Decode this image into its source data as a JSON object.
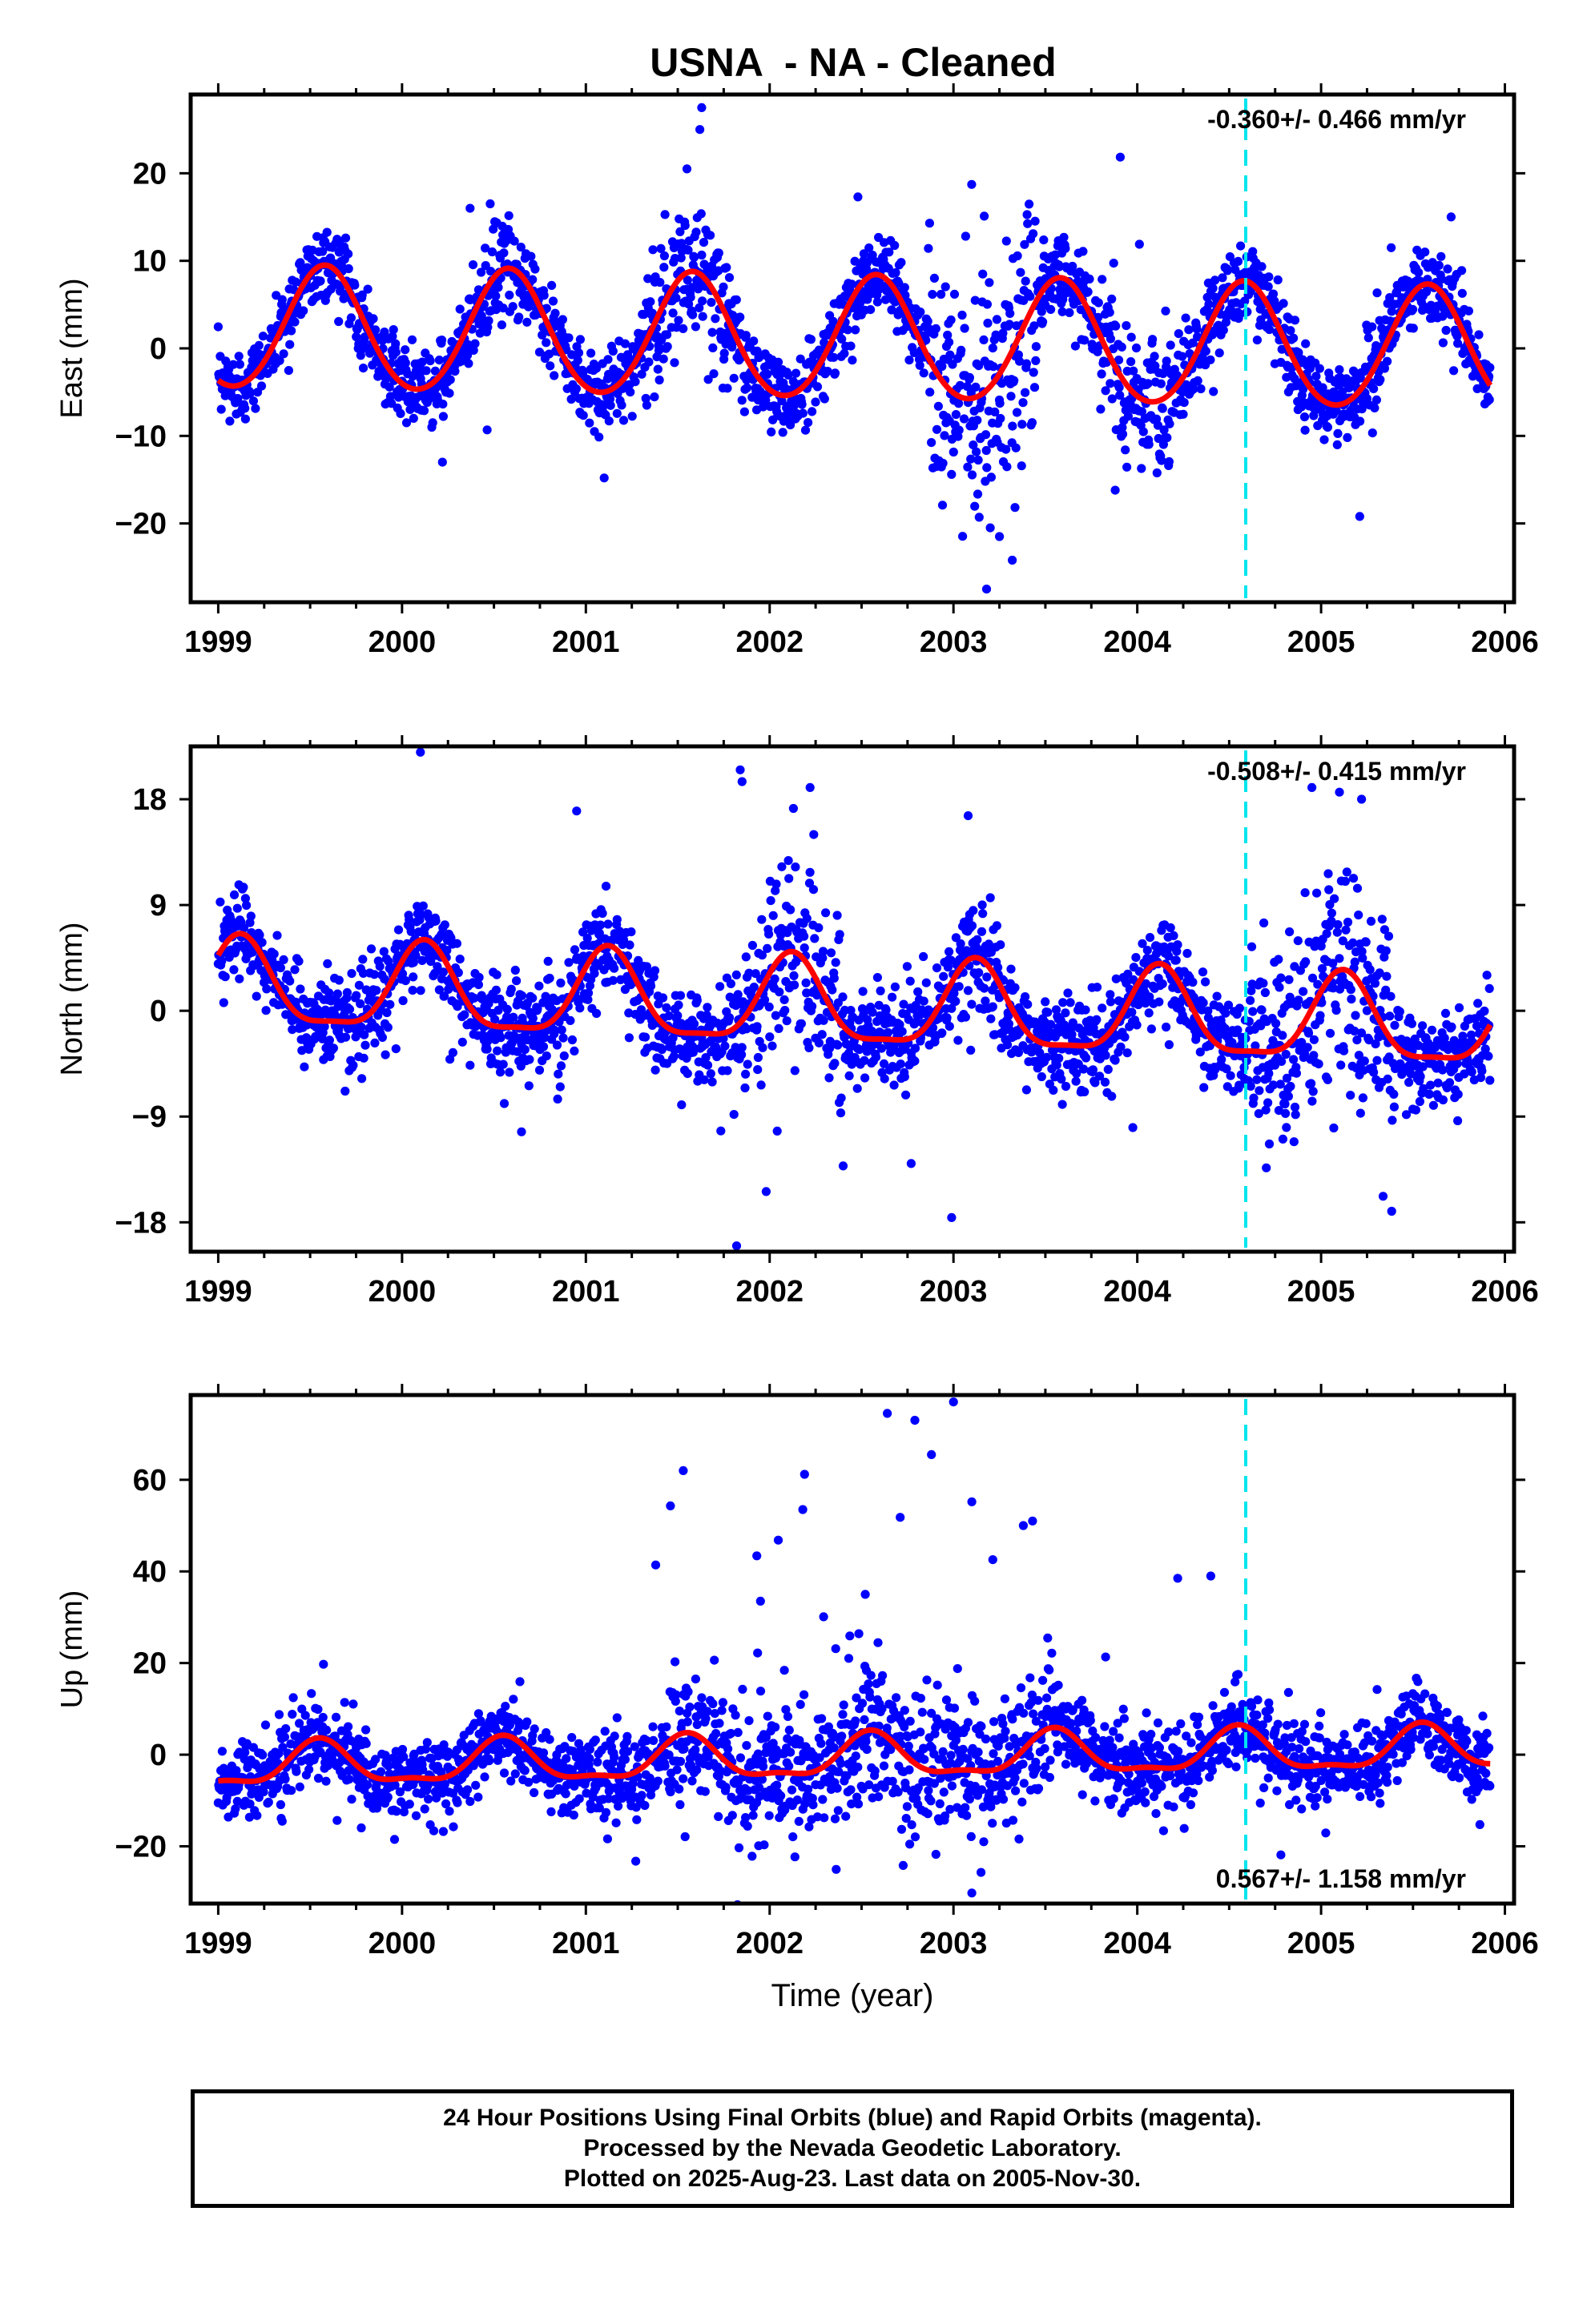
{
  "title": "USNA  - NA - Cleaned",
  "colors": {
    "points": "#0000ff",
    "model": "#ff0000",
    "event_line": "#00e5ee",
    "frame": "#000000"
  },
  "footer": {
    "line1": "24 Hour Positions Using Final Orbits (blue) and Rapid Orbits (magenta).",
    "line2": "Processed by the Nevada Geodetic Laboratory.",
    "line3": "Plotted on 2025-Aug-23. Last data on 2005-Nov-30."
  },
  "chart_data": [
    {
      "type": "scatter",
      "ylabel": "East (mm)",
      "xlabel": "",
      "xlim": [
        1998.85,
        2006.05
      ],
      "ylim": [
        -29,
        29
      ],
      "yticks": [
        -20,
        -10,
        0,
        10,
        20
      ],
      "xticks": [
        1999,
        2000,
        2001,
        2002,
        2003,
        2004,
        2005,
        2006
      ],
      "rate_label": "-0.360+/- 0.466 mm/yr",
      "rate_position": "top-right",
      "event_line_x": 2004.59,
      "series": [
        {
          "kind": "points",
          "model": {
            "mean": 1.0,
            "trend": -0.36,
            "amp": 7.0,
            "phase_peak": 0.58,
            "amp2": 0.5,
            "t0": 2002.4,
            "noise": 2.2,
            "start": 1999.0,
            "end": 2005.92,
            "step": 0.00274,
            "offset_at_event": 0.0,
            "extra_noise": [
              [
                2001.3,
                2001.9,
                4
              ],
              [
                2002.85,
                2003.45,
                7
              ],
              [
                2003.8,
                2004.2,
                4
              ],
              [
                2000.35,
                2000.6,
                3
              ]
            ]
          },
          "outliers": [
            [
              2001.63,
              27.5
            ],
            [
              2001.62,
              25
            ],
            [
              2002.48,
              17.3
            ],
            [
              2002.87,
              14.3
            ],
            [
              2003.18,
              -27.5
            ],
            [
              2003.32,
              -24.2
            ],
            [
              2005.21,
              -19.2
            ],
            [
              2000.22,
              -13.0
            ],
            [
              2003.88,
              -16.2
            ],
            [
              2001.55,
              20.5
            ],
            [
              2000.37,
              16.0
            ],
            [
              2001.1,
              -14.8
            ],
            [
              2003.2,
              -20.5
            ],
            [
              2003.25,
              -21.5
            ]
          ]
        },
        {
          "kind": "line",
          "name": "",
          "model_ref": 0
        }
      ]
    },
    {
      "type": "scatter",
      "ylabel": "North (mm)",
      "xlabel": "",
      "xlim": [
        1998.85,
        2006.05
      ],
      "ylim": [
        -20.5,
        22.5
      ],
      "yticks": [
        -18,
        -9,
        0,
        9,
        18
      ],
      "xticks": [
        1999,
        2000,
        2001,
        2002,
        2003,
        2004,
        2005,
        2006
      ],
      "rate_label": "-0.508+/- 0.415 mm/yr",
      "rate_position": "top-right",
      "event_line_x": 2004.59,
      "series": [
        {
          "kind": "points",
          "model": {
            "mean": 0.3,
            "trend": -0.51,
            "amp": 3.6,
            "phase_peak": 0.12,
            "amp2": 1.0,
            "t0": 2002.4,
            "noise": 1.9,
            "start": 1999.0,
            "end": 2005.92,
            "step": 0.00274,
            "offset_at_event": 0.0,
            "extra_noise": [
              [
                2002.0,
                2002.4,
                4
              ],
              [
                2003.05,
                2003.3,
                3
              ],
              [
                2004.6,
                2005.4,
                4.5
              ],
              [
                2001.8,
                2002.1,
                3
              ]
            ]
          },
          "outliers": [
            [
              2000.1,
              22.0
            ],
            [
              2001.84,
              20.5
            ],
            [
              2001.85,
              19.5
            ],
            [
              2002.22,
              19.0
            ],
            [
              2001.82,
              -20.0
            ],
            [
              2002.4,
              -13.2
            ],
            [
              2002.77,
              -13.0
            ],
            [
              2002.99,
              -17.6
            ],
            [
              2004.95,
              19.0
            ],
            [
              2005.1,
              18.6
            ],
            [
              2005.22,
              18.0
            ],
            [
              2000.95,
              17.0
            ],
            [
              2002.24,
              15.0
            ],
            [
              2003.08,
              16.6
            ],
            [
              2000.65,
              -10.3
            ]
          ]
        },
        {
          "kind": "line",
          "name": "",
          "model_ref": 1
        }
      ]
    },
    {
      "type": "scatter",
      "ylabel": "Up (mm)",
      "xlabel": "Time (year)",
      "xlim": [
        1998.85,
        2006.05
      ],
      "ylim": [
        -32.5,
        78.5
      ],
      "yticks": [
        -20,
        0,
        20,
        40,
        60
      ],
      "xticks": [
        1999,
        2000,
        2001,
        2002,
        2003,
        2004,
        2005,
        2006
      ],
      "rate_label": "0.567+/- 1.158 mm/yr",
      "rate_position": "bottom-right",
      "event_line_x": 2004.59,
      "series": [
        {
          "kind": "points",
          "model": {
            "mean": -0.8,
            "trend": 0.57,
            "amp": 4.5,
            "phase_peak": 0.55,
            "amp2": 1.6,
            "t0": 2002.4,
            "noise": 4.2,
            "start": 1999.0,
            "end": 2005.92,
            "step": 0.00274,
            "offset_at_event": 0.0,
            "extra_noise": [
              [
                2001.45,
                2003.55,
                7
              ],
              [
                2001.1,
                2001.35,
                5
              ]
            ]
          },
          "outliers": [
            [
              2002.64,
              74.5
            ],
            [
              2002.79,
              73.0
            ],
            [
              2003.0,
              77.0
            ],
            [
              2002.88,
              65.5
            ],
            [
              2002.19,
              61.2
            ],
            [
              2001.53,
              62.0
            ],
            [
              2001.46,
              54.3
            ],
            [
              2002.18,
              53.5
            ],
            [
              2003.1,
              55.2
            ],
            [
              2003.38,
              50.0
            ],
            [
              2003.43,
              51.0
            ],
            [
              2002.71,
              51.8
            ],
            [
              2001.38,
              41.4
            ],
            [
              2001.93,
              43.4
            ],
            [
              2004.22,
              38.5
            ],
            [
              2004.4,
              39.0
            ],
            [
              2003.1,
              -30.2
            ],
            [
              2003.15,
              -25.7
            ],
            [
              2002.52,
              35.0
            ],
            [
              2001.95,
              33.5
            ]
          ]
        },
        {
          "kind": "line",
          "name": "",
          "model_ref": 2
        }
      ]
    }
  ]
}
